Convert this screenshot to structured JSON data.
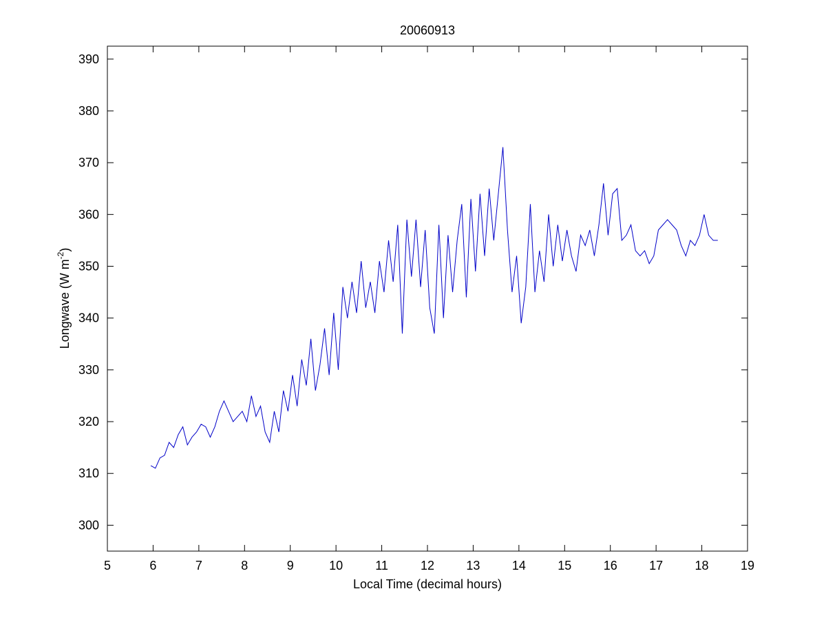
{
  "chart_data": {
    "type": "line",
    "title": "20060913",
    "xlabel": "Local Time (decimal hours)",
    "ylabel": [
      "Longwave (W m",
      "-2",
      ")"
    ],
    "xlim": [
      5,
      19
    ],
    "ylim": [
      295,
      392.5
    ],
    "xticks": [
      5,
      6,
      7,
      8,
      9,
      10,
      11,
      12,
      13,
      14,
      15,
      16,
      17,
      18,
      19
    ],
    "yticks": [
      300,
      310,
      320,
      330,
      340,
      350,
      360,
      370,
      380,
      390
    ],
    "x": [
      5.95,
      6.05,
      6.15,
      6.25,
      6.35,
      6.45,
      6.55,
      6.65,
      6.75,
      6.85,
      6.95,
      7.05,
      7.15,
      7.25,
      7.35,
      7.45,
      7.55,
      7.65,
      7.75,
      7.85,
      7.95,
      8.05,
      8.15,
      8.25,
      8.35,
      8.45,
      8.55,
      8.65,
      8.75,
      8.85,
      8.95,
      9.05,
      9.15,
      9.25,
      9.35,
      9.45,
      9.55,
      9.65,
      9.75,
      9.85,
      9.95,
      10.05,
      10.15,
      10.25,
      10.35,
      10.45,
      10.55,
      10.65,
      10.75,
      10.85,
      10.95,
      11.05,
      11.15,
      11.25,
      11.35,
      11.45,
      11.55,
      11.65,
      11.75,
      11.85,
      11.95,
      12.05,
      12.15,
      12.25,
      12.35,
      12.45,
      12.55,
      12.65,
      12.75,
      12.85,
      12.95,
      13.05,
      13.15,
      13.25,
      13.35,
      13.45,
      13.55,
      13.65,
      13.75,
      13.85,
      13.95,
      14.05,
      14.15,
      14.25,
      14.35,
      14.45,
      14.55,
      14.65,
      14.75,
      14.85,
      14.95,
      15.05,
      15.15,
      15.25,
      15.35,
      15.45,
      15.55,
      15.65,
      15.75,
      15.85,
      15.95,
      16.05,
      16.15,
      16.25,
      16.35,
      16.45,
      16.55,
      16.65,
      16.75,
      16.85,
      16.95,
      17.05,
      17.15,
      17.25,
      17.35,
      17.45,
      17.55,
      17.65,
      17.75,
      17.85,
      17.95,
      18.05,
      18.15,
      18.25,
      18.35
    ],
    "series": [
      {
        "color": "#0000c8",
        "values": [
          311.5,
          311,
          313,
          313.5,
          316,
          315,
          317.5,
          319,
          315.5,
          317,
          318,
          319.5,
          319,
          317,
          319,
          322,
          324,
          322,
          320,
          321,
          322,
          320,
          325,
          321,
          323,
          318,
          316,
          322,
          318,
          326,
          322,
          329,
          323,
          332,
          327,
          336,
          326,
          331,
          338,
          329,
          341,
          330,
          346,
          340,
          347,
          341,
          351,
          342,
          347,
          341,
          351,
          345,
          355,
          347,
          358,
          337,
          359,
          348,
          359,
          346,
          357,
          342,
          337,
          358,
          340,
          356,
          345,
          355,
          362,
          344,
          363,
          349,
          364,
          352,
          365,
          355,
          364,
          373,
          357,
          345,
          352,
          339,
          346,
          362,
          345,
          353,
          347,
          360,
          350,
          358,
          351,
          357,
          352,
          349,
          356,
          354,
          357,
          352,
          358,
          366,
          356,
          364,
          365,
          355,
          356,
          358,
          353,
          352,
          353,
          350.5,
          352,
          357,
          358,
          359,
          358,
          357,
          354,
          352,
          355,
          354,
          356,
          360,
          356,
          355,
          355
        ]
      }
    ],
    "box": true
  }
}
